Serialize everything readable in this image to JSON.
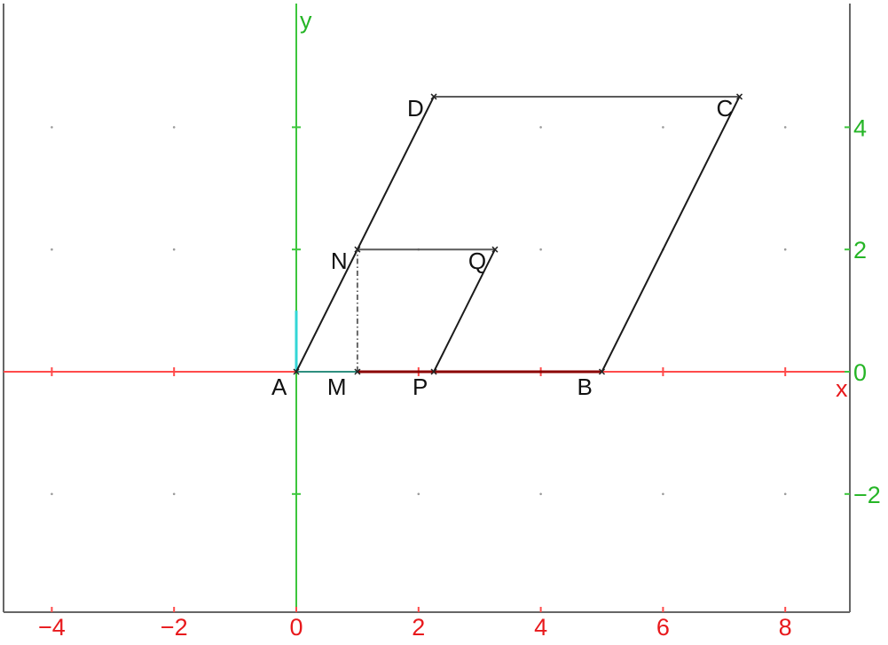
{
  "axes": {
    "x_label": "x",
    "y_label": "y",
    "x_ticks": [
      {
        "value": -4,
        "label": "−4"
      },
      {
        "value": -2,
        "label": "−2"
      },
      {
        "value": 0,
        "label": "0"
      },
      {
        "value": 2,
        "label": "2"
      },
      {
        "value": 4,
        "label": "4"
      },
      {
        "value": 6,
        "label": "6"
      },
      {
        "value": 8,
        "label": "8"
      }
    ],
    "y_ticks": [
      {
        "value": -2,
        "label": "−2"
      },
      {
        "value": 0,
        "label": "0"
      },
      {
        "value": 2,
        "label": "2"
      },
      {
        "value": 4,
        "label": "4"
      }
    ],
    "x_color": "#ff4a4a",
    "y_color": "#3cc63c",
    "x_tick_label_color": "#e8191c",
    "y_tick_label_color": "#25b526",
    "xlim": [
      -4.85,
      9.0
    ],
    "ylim": [
      -3.9,
      6.0
    ],
    "grid": "dots"
  },
  "points": [
    {
      "id": "A",
      "label": "A",
      "x": 0,
      "y": 0
    },
    {
      "id": "M",
      "label": "M",
      "x": 1,
      "y": 0
    },
    {
      "id": "P",
      "label": "P",
      "x": 2.25,
      "y": 0
    },
    {
      "id": "B",
      "label": "B",
      "x": 5,
      "y": 0
    },
    {
      "id": "N",
      "label": "N",
      "x": 1,
      "y": 2
    },
    {
      "id": "Q",
      "label": "Q",
      "x": 3.25,
      "y": 2
    },
    {
      "id": "D",
      "label": "D",
      "x": 2.25,
      "y": 4.5
    },
    {
      "id": "C",
      "label": "C",
      "x": 7.25,
      "y": 4.5
    }
  ],
  "segments": [
    {
      "from": "A",
      "to": "D",
      "color": "#1a1a1a",
      "style": "solid"
    },
    {
      "from": "D",
      "to": "C",
      "color": "#5a5a5a",
      "style": "solid"
    },
    {
      "from": "C",
      "to": "B",
      "color": "#1a1a1a",
      "style": "solid"
    },
    {
      "from": "N",
      "to": "Q",
      "color": "#5a5a5a",
      "style": "solid"
    },
    {
      "from": "Q",
      "to": "P",
      "color": "#1a1a1a",
      "style": "solid"
    },
    {
      "from": "M",
      "to": "B",
      "color": "#8b0000",
      "style": "solid"
    },
    {
      "from": "A",
      "to": "M",
      "color": "#2f8f7f",
      "style": "solid"
    },
    {
      "from": "M",
      "to": "N",
      "color": "#666666",
      "style": "dashdot"
    }
  ],
  "highlights": [
    {
      "name": "unit-y-marker",
      "from": [
        0,
        0
      ],
      "to": [
        0,
        1.0
      ],
      "color": "#33d6d6"
    }
  ]
}
